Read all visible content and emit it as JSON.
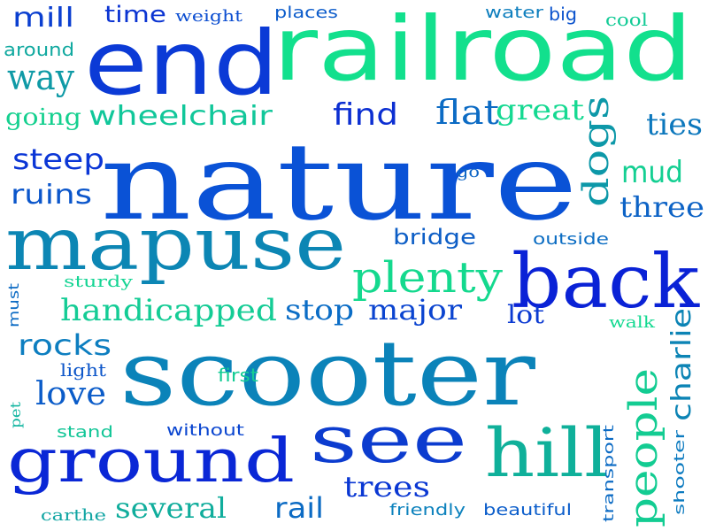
{
  "words": [
    {
      "text": "nature",
      "color": "#0a52d6"
    },
    {
      "text": "scooter",
      "color": "#0b83b9"
    },
    {
      "text": "railroad",
      "color": "#12e08d"
    },
    {
      "text": "end",
      "color": "#0b3ad6"
    },
    {
      "text": "mapuse",
      "color": "#0c86b4"
    },
    {
      "text": "back",
      "color": "#0a22d6"
    },
    {
      "text": "ground",
      "color": "#0a27d6"
    },
    {
      "text": "see",
      "color": "#0c3ccf"
    },
    {
      "text": "hill",
      "color": "#0fb09a"
    },
    {
      "text": "plenty",
      "color": "#14d98e"
    },
    {
      "text": "people",
      "color": "#13cc92"
    },
    {
      "text": "dogs",
      "color": "#0d98a8"
    },
    {
      "text": "charlie",
      "color": "#0c84b5"
    },
    {
      "text": "handicapped",
      "color": "#14cc95"
    },
    {
      "text": "wheelchair",
      "color": "#11c79a"
    },
    {
      "text": "flat",
      "color": "#0c6bc4"
    },
    {
      "text": "great",
      "color": "#14d991"
    },
    {
      "text": "find",
      "color": "#0c2fd2"
    },
    {
      "text": "mud",
      "color": "#14cf92"
    },
    {
      "text": "way",
      "color": "#0f9aa6"
    },
    {
      "text": "ties",
      "color": "#0d78bd"
    },
    {
      "text": "steep",
      "color": "#0b36d6"
    },
    {
      "text": "three",
      "color": "#0d63c6"
    },
    {
      "text": "ruins",
      "color": "#0b56cb"
    },
    {
      "text": "major",
      "color": "#0b44d0"
    },
    {
      "text": "stop",
      "color": "#0b6dc6"
    },
    {
      "text": "rocks",
      "color": "#0d7ec0"
    },
    {
      "text": "love",
      "color": "#0b5cc9"
    },
    {
      "text": "trees",
      "color": "#0a37d3"
    },
    {
      "text": "several",
      "color": "#10ad9c"
    },
    {
      "text": "rail",
      "color": "#0c6bc4"
    },
    {
      "text": "mill",
      "color": "#0b3fd0"
    },
    {
      "text": "time",
      "color": "#0b34d2"
    },
    {
      "text": "going",
      "color": "#15d08f"
    },
    {
      "text": "bridge",
      "color": "#0d5ec6"
    },
    {
      "text": "lot",
      "color": "#0b3ad2"
    },
    {
      "text": "around",
      "color": "#11a9a0"
    },
    {
      "text": "weight",
      "color": "#0c4ed1"
    },
    {
      "text": "places",
      "color": "#0c5ccb"
    },
    {
      "text": "water",
      "color": "#0f7fbe"
    },
    {
      "text": "big",
      "color": "#0b53cd"
    },
    {
      "text": "cool",
      "color": "#13cb96"
    },
    {
      "text": "outside",
      "color": "#0c6dc3"
    },
    {
      "text": "go",
      "color": "#0c64c5"
    },
    {
      "text": "sturdy",
      "color": "#14d493"
    },
    {
      "text": "must",
      "color": "#0c6bc4"
    },
    {
      "text": "light",
      "color": "#0d56c9"
    },
    {
      "text": "first",
      "color": "#13cc94"
    },
    {
      "text": "pet",
      "color": "#11b5a0"
    },
    {
      "text": "walk",
      "color": "#14d991"
    },
    {
      "text": "stand",
      "color": "#13c697"
    },
    {
      "text": "without",
      "color": "#0b46d0"
    },
    {
      "text": "transport",
      "color": "#0c6bc4"
    },
    {
      "text": "shooter",
      "color": "#0d7bc0"
    },
    {
      "text": "friendly",
      "color": "#0d82bd"
    },
    {
      "text": "beautiful",
      "color": "#0c5ecb"
    },
    {
      "text": "carthe",
      "color": "#11a5a3"
    }
  ]
}
